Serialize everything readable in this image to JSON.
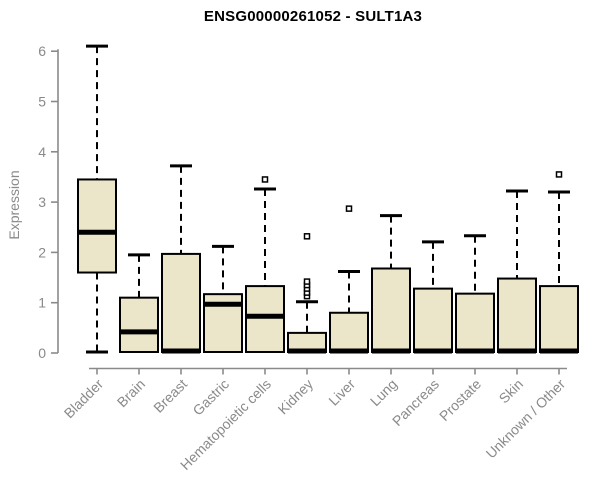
{
  "chart_data": {
    "type": "boxplot",
    "title": "ENSG00000261052 - SULT1A3",
    "xlabel": "",
    "ylabel": "Expression",
    "ylim": [
      0,
      6.2
    ],
    "yticks": [
      0,
      1,
      2,
      3,
      4,
      5,
      6
    ],
    "grid": false,
    "legend": "none",
    "categories": [
      "Bladder",
      "Brain",
      "Breast",
      "Gastric",
      "Hematopoietic cells",
      "Kidney",
      "Liver",
      "Lung",
      "Pancreas",
      "Prostate",
      "Skin",
      "Unknown / Other"
    ],
    "boxes": [
      {
        "category": "Bladder",
        "whisker_low": 0.02,
        "q1": 1.6,
        "median": 2.4,
        "q3": 3.45,
        "whisker_high": 6.1,
        "outliers": []
      },
      {
        "category": "Brain",
        "whisker_low": 0.02,
        "q1": 0.02,
        "median": 0.42,
        "q3": 1.1,
        "whisker_high": 1.95,
        "outliers": []
      },
      {
        "category": "Breast",
        "whisker_low": 0.02,
        "q1": 0.02,
        "median": 0.04,
        "q3": 1.97,
        "whisker_high": 3.72,
        "outliers": []
      },
      {
        "category": "Gastric",
        "whisker_low": 0.02,
        "q1": 0.02,
        "median": 0.97,
        "q3": 1.17,
        "whisker_high": 2.12,
        "outliers": []
      },
      {
        "category": "Hematopoietic cells",
        "whisker_low": 0.02,
        "q1": 0.02,
        "median": 0.73,
        "q3": 1.33,
        "whisker_high": 3.26,
        "outliers": [
          3.45
        ]
      },
      {
        "category": "Kidney",
        "whisker_low": 0.02,
        "q1": 0.02,
        "median": 0.04,
        "q3": 0.4,
        "whisker_high": 1.02,
        "outliers": [
          1.13,
          1.2,
          1.28,
          1.35,
          1.42,
          2.32
        ]
      },
      {
        "category": "Liver",
        "whisker_low": 0.02,
        "q1": 0.02,
        "median": 0.04,
        "q3": 0.8,
        "whisker_high": 1.62,
        "outliers": [
          2.87
        ]
      },
      {
        "category": "Lung",
        "whisker_low": 0.02,
        "q1": 0.02,
        "median": 0.04,
        "q3": 1.68,
        "whisker_high": 2.73,
        "outliers": []
      },
      {
        "category": "Pancreas",
        "whisker_low": 0.02,
        "q1": 0.02,
        "median": 0.04,
        "q3": 1.28,
        "whisker_high": 2.21,
        "outliers": []
      },
      {
        "category": "Prostate",
        "whisker_low": 0.02,
        "q1": 0.02,
        "median": 0.04,
        "q3": 1.18,
        "whisker_high": 2.33,
        "outliers": []
      },
      {
        "category": "Skin",
        "whisker_low": 0.02,
        "q1": 0.02,
        "median": 0.04,
        "q3": 1.48,
        "whisker_high": 3.22,
        "outliers": []
      },
      {
        "category": "Unknown / Other",
        "whisker_low": 0.02,
        "q1": 0.02,
        "median": 0.04,
        "q3": 1.33,
        "whisker_high": 3.2,
        "outliers": [
          3.55
        ]
      }
    ],
    "colors": {
      "box_fill": "#EBE6C9",
      "box_border": "#000000",
      "median_color": "#000000",
      "whisker_color": "#000000",
      "axis_color": "#8A8A8A",
      "tick_text_color": "#8A8A8A",
      "title_color": "#000000",
      "background": "#FFFFFF"
    }
  }
}
